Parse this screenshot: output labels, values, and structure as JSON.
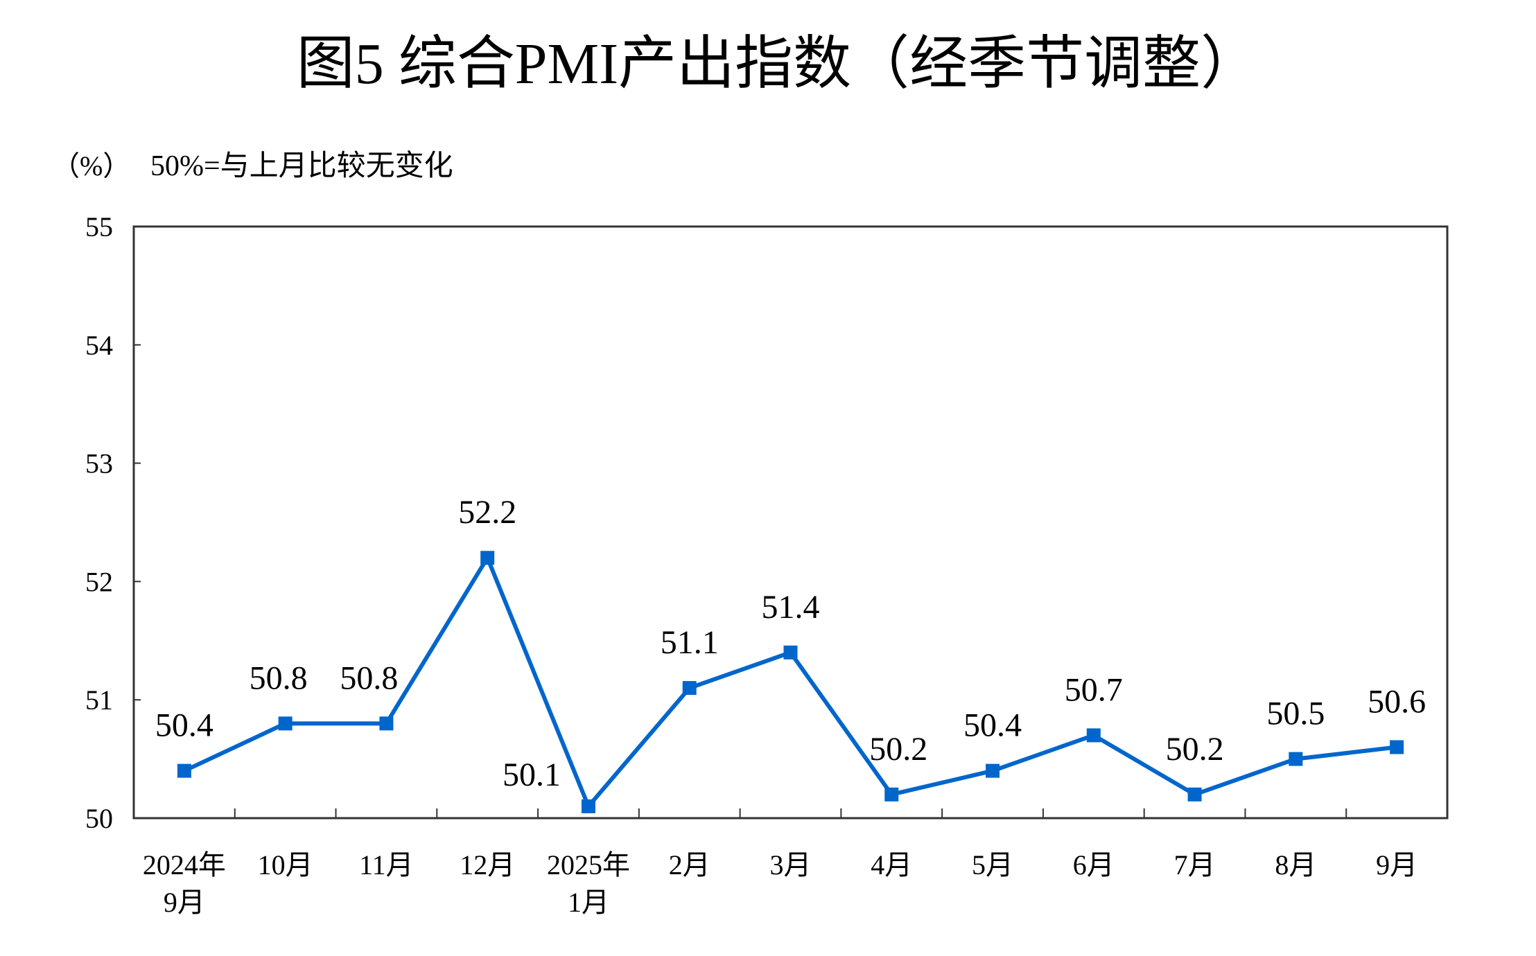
{
  "chart_data": {
    "type": "line",
    "title": "图5  综合PMI产出指数（经季节调整）",
    "unit_label": "（%）",
    "note": "50%=与上月比较无变化",
    "categories": [
      [
        "2024年",
        "9月"
      ],
      [
        "10月"
      ],
      [
        "11月"
      ],
      [
        "12月"
      ],
      [
        "2025年",
        "1月"
      ],
      [
        "2月"
      ],
      [
        "3月"
      ],
      [
        "4月"
      ],
      [
        "5月"
      ],
      [
        "6月"
      ],
      [
        "7月"
      ],
      [
        "8月"
      ],
      [
        "9月"
      ]
    ],
    "values": [
      50.4,
      50.8,
      50.8,
      52.2,
      50.1,
      51.1,
      51.4,
      50.2,
      50.4,
      50.7,
      50.2,
      50.5,
      50.6
    ],
    "data_labels": [
      "50.4",
      "50.8",
      "50.8",
      "52.2",
      "50.1",
      "51.1",
      "51.4",
      "50.2",
      "50.4",
      "50.7",
      "50.2",
      "50.5",
      "50.6"
    ],
    "ylim": [
      50,
      55
    ],
    "yticks": [
      "50",
      "51",
      "52",
      "53",
      "54",
      "55"
    ],
    "grid": false,
    "legend": "none",
    "line_color": "#0066CC",
    "marker": "square"
  }
}
